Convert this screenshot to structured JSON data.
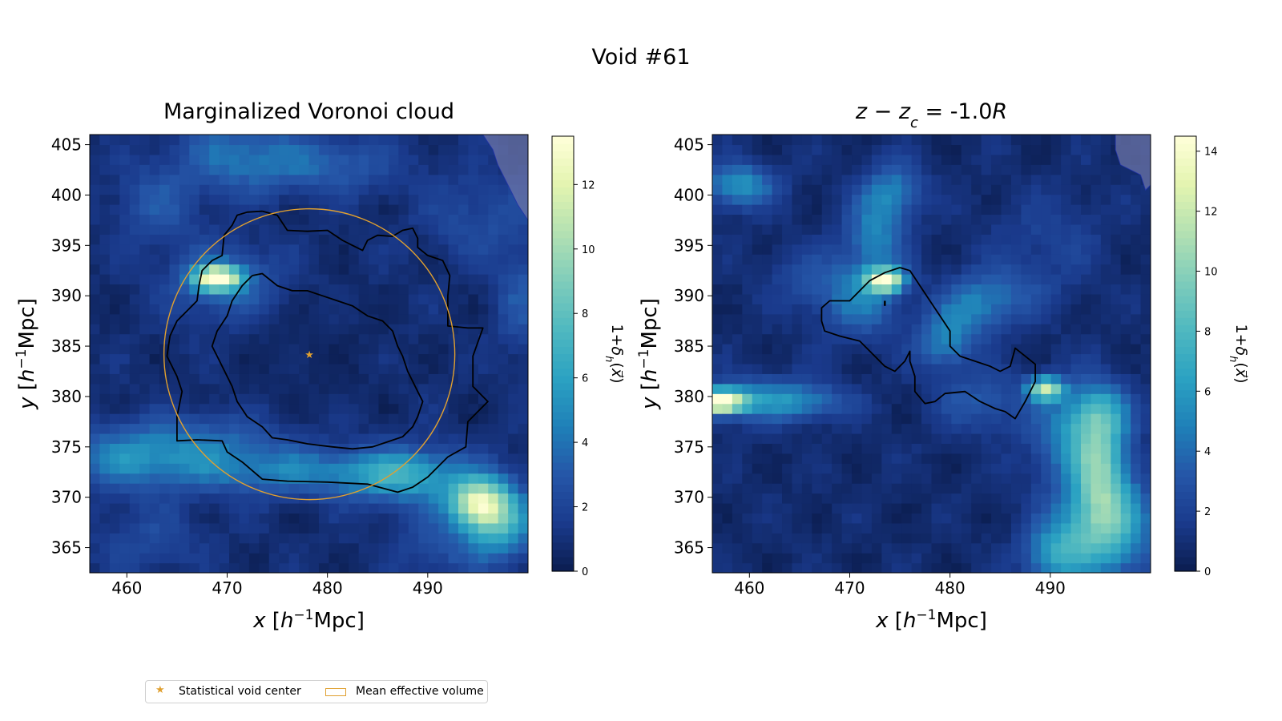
{
  "suptitle": "Void #61",
  "colors": {
    "colormap": [
      "#0b1d4f",
      "#1a3a8c",
      "#2556a8",
      "#1f80b8",
      "#2ba2c2",
      "#4fb8c0",
      "#7fcdbb",
      "#b3e0b2",
      "#e3f4b0",
      "#ffffd9"
    ],
    "contour_line": "#000000",
    "center_marker": "#e0a030",
    "effective_volume": "#e0a030",
    "mask_overlay": "#6b74a8"
  },
  "legend": {
    "center_label": "Statistical void center",
    "volume_label": "Mean effective volume"
  },
  "chart_data": [
    {
      "type": "heatmap",
      "title": "Marginalized Voronoi cloud",
      "xlabel": "x [h⁻¹Mpc]",
      "ylabel": "y [h⁻¹Mpc]",
      "colorbar_label": "1+δₕ(x⃗)",
      "xlim": [
        456.3,
        500.0
      ],
      "ylim": [
        362.5,
        406.0
      ],
      "xticks": [
        460,
        470,
        480,
        490
      ],
      "yticks": [
        365,
        370,
        375,
        380,
        385,
        390,
        395,
        400,
        405
      ],
      "clim": [
        0,
        13.5
      ],
      "cbar_ticks": [
        0,
        2,
        4,
        6,
        8,
        10,
        12
      ],
      "void_center": [
        478.2,
        384.2
      ],
      "effective_radius": 14.5,
      "density_features": [
        {
          "x": 469.0,
          "y": 391.8,
          "amp": 12.5,
          "sx": 1.6,
          "sy": 0.8
        },
        {
          "x": 470.0,
          "y": 391.3,
          "amp": 3.0,
          "sx": 4.0,
          "sy": 2.6
        },
        {
          "x": 495.0,
          "y": 369.5,
          "amp": 9.0,
          "sx": 2.0,
          "sy": 1.6
        },
        {
          "x": 497.0,
          "y": 367.5,
          "amp": 6.0,
          "sx": 2.5,
          "sy": 2.5
        },
        {
          "x": 488.0,
          "y": 372.0,
          "amp": 4.0,
          "sx": 4.0,
          "sy": 2.0
        },
        {
          "x": 478.0,
          "y": 372.5,
          "amp": 3.5,
          "sx": 10.0,
          "sy": 1.6
        },
        {
          "x": 460.0,
          "y": 374.0,
          "amp": 3.2,
          "sx": 5.0,
          "sy": 2.0
        },
        {
          "x": 468.0,
          "y": 375.5,
          "amp": 2.5,
          "sx": 6.0,
          "sy": 2.0
        },
        {
          "x": 471.0,
          "y": 404.0,
          "amp": 3.0,
          "sx": 4.0,
          "sy": 2.5
        },
        {
          "x": 480.0,
          "y": 403.0,
          "amp": 2.5,
          "sx": 5.0,
          "sy": 2.0
        },
        {
          "x": 463.0,
          "y": 399.0,
          "amp": 2.0,
          "sx": 3.0,
          "sy": 3.0
        },
        {
          "x": 495.0,
          "y": 398.0,
          "amp": 1.6,
          "sx": 4.0,
          "sy": 3.0
        },
        {
          "x": 499.5,
          "y": 390.0,
          "amp": 2.0,
          "sx": 2.0,
          "sy": 4.0
        },
        {
          "x": 462.0,
          "y": 366.0,
          "amp": 1.4,
          "sx": 4.0,
          "sy": 2.5
        },
        {
          "x": 491.0,
          "y": 365.0,
          "amp": 1.6,
          "sx": 3.0,
          "sy": 2.5
        }
      ],
      "contours": [
        [
          [
            473.5,
            398.4
          ],
          [
            475.0,
            398.0
          ],
          [
            476.0,
            396.5
          ],
          [
            478.0,
            396.4
          ],
          [
            480.0,
            396.5
          ],
          [
            481.5,
            395.5
          ],
          [
            482.5,
            395.0
          ],
          [
            483.5,
            394.5
          ],
          [
            484.0,
            395.5
          ],
          [
            485.0,
            396.0
          ],
          [
            486.5,
            395.9
          ],
          [
            487.5,
            396.5
          ],
          [
            488.5,
            396.7
          ],
          [
            489.0,
            395.7
          ],
          [
            489.0,
            394.8
          ],
          [
            490.0,
            394.0
          ],
          [
            491.5,
            393.5
          ],
          [
            492.2,
            392.0
          ],
          [
            492.0,
            390.0
          ],
          [
            492.0,
            387.0
          ],
          [
            494.0,
            386.8
          ],
          [
            495.5,
            386.8
          ],
          [
            494.5,
            384.0
          ],
          [
            494.5,
            381.0
          ],
          [
            496.0,
            379.5
          ],
          [
            494.0,
            377.5
          ],
          [
            493.8,
            375.0
          ],
          [
            492.0,
            374.0
          ],
          [
            490.0,
            372.0
          ],
          [
            488.5,
            371.0
          ],
          [
            487.0,
            370.5
          ],
          [
            484.0,
            371.3
          ],
          [
            480.0,
            371.5
          ],
          [
            476.0,
            371.6
          ],
          [
            473.5,
            371.8
          ],
          [
            471.5,
            373.5
          ],
          [
            470.0,
            374.5
          ],
          [
            469.5,
            375.6
          ],
          [
            467.0,
            375.7
          ],
          [
            465.0,
            375.6
          ],
          [
            465.0,
            378.0
          ],
          [
            465.5,
            380.5
          ],
          [
            465.0,
            382.0
          ],
          [
            464.0,
            384.0
          ],
          [
            464.3,
            386.0
          ],
          [
            465.0,
            387.5
          ],
          [
            466.0,
            388.5
          ],
          [
            467.0,
            389.5
          ],
          [
            467.2,
            391.0
          ],
          [
            467.5,
            392.5
          ],
          [
            468.5,
            393.5
          ],
          [
            469.5,
            394.0
          ],
          [
            469.7,
            396.0
          ],
          [
            470.5,
            397.0
          ],
          [
            471.0,
            398.0
          ],
          [
            472.0,
            398.3
          ],
          [
            473.5,
            398.4
          ]
        ],
        [
          [
            472.5,
            392.0
          ],
          [
            473.5,
            392.2
          ],
          [
            475.0,
            391.0
          ],
          [
            476.5,
            390.5
          ],
          [
            478.0,
            390.5
          ],
          [
            479.5,
            390.0
          ],
          [
            481.0,
            389.5
          ],
          [
            482.5,
            389.0
          ],
          [
            484.0,
            388.0
          ],
          [
            485.5,
            387.5
          ],
          [
            486.5,
            386.5
          ],
          [
            487.0,
            385.0
          ],
          [
            487.5,
            384.0
          ],
          [
            488.0,
            382.5
          ],
          [
            488.5,
            381.5
          ],
          [
            489.0,
            380.5
          ],
          [
            489.5,
            379.5
          ],
          [
            489.0,
            378.0
          ],
          [
            488.5,
            377.0
          ],
          [
            487.5,
            376.0
          ],
          [
            486.0,
            375.5
          ],
          [
            484.5,
            375.0
          ],
          [
            482.5,
            374.8
          ],
          [
            480.5,
            375.0
          ],
          [
            478.0,
            375.3
          ],
          [
            476.0,
            375.7
          ],
          [
            474.5,
            375.9
          ],
          [
            473.5,
            377.0
          ],
          [
            472.0,
            378.0
          ],
          [
            471.0,
            379.5
          ],
          [
            470.5,
            381.0
          ],
          [
            470.0,
            382.0
          ],
          [
            469.0,
            384.0
          ],
          [
            468.5,
            385.0
          ],
          [
            469.0,
            386.5
          ],
          [
            470.0,
            388.0
          ],
          [
            470.5,
            389.5
          ],
          [
            471.5,
            391.0
          ],
          [
            472.5,
            392.0
          ]
        ]
      ],
      "mask_polygon": [
        [
          495.5,
          406.0
        ],
        [
          500.0,
          406.0
        ],
        [
          500.0,
          397.5
        ],
        [
          499.0,
          399.0
        ],
        [
          498.0,
          401.0
        ],
        [
          497.0,
          403.0
        ],
        [
          496.5,
          404.5
        ],
        [
          495.5,
          406.0
        ]
      ]
    },
    {
      "type": "heatmap",
      "title": "z − z_c = -1.0R",
      "xlabel": "x [h⁻¹Mpc]",
      "ylabel": "y [h⁻¹Mpc]",
      "colorbar_label": "1+δₕ(x⃗)",
      "xlim": [
        456.3,
        500.0
      ],
      "ylim": [
        362.5,
        406.0
      ],
      "xticks": [
        460,
        470,
        480,
        490
      ],
      "yticks": [
        365,
        370,
        375,
        380,
        385,
        390,
        395,
        400,
        405
      ],
      "clim": [
        0,
        14.5
      ],
      "cbar_ticks": [
        0,
        2,
        4,
        6,
        8,
        10,
        12,
        14
      ],
      "density_features": [
        {
          "x": 457.0,
          "y": 379.5,
          "amp": 13.5,
          "sx": 1.8,
          "sy": 0.8
        },
        {
          "x": 461.0,
          "y": 379.8,
          "amp": 4.0,
          "sx": 4.0,
          "sy": 1.5
        },
        {
          "x": 466.0,
          "y": 379.5,
          "amp": 2.5,
          "sx": 3.0,
          "sy": 1.2
        },
        {
          "x": 473.5,
          "y": 391.6,
          "amp": 12.0,
          "sx": 1.3,
          "sy": 0.8
        },
        {
          "x": 471.0,
          "y": 389.5,
          "amp": 3.5,
          "sx": 3.0,
          "sy": 2.5
        },
        {
          "x": 472.5,
          "y": 396.0,
          "amp": 4.0,
          "sx": 2.0,
          "sy": 3.0
        },
        {
          "x": 474.5,
          "y": 400.5,
          "amp": 3.5,
          "sx": 2.0,
          "sy": 2.0
        },
        {
          "x": 459.0,
          "y": 401.0,
          "amp": 5.0,
          "sx": 2.5,
          "sy": 1.5
        },
        {
          "x": 479.5,
          "y": 385.5,
          "amp": 4.0,
          "sx": 2.0,
          "sy": 2.0
        },
        {
          "x": 482.5,
          "y": 389.0,
          "amp": 3.5,
          "sx": 2.5,
          "sy": 2.0
        },
        {
          "x": 489.5,
          "y": 380.8,
          "amp": 10.0,
          "sx": 1.2,
          "sy": 0.8
        },
        {
          "x": 492.5,
          "y": 376.0,
          "amp": 4.5,
          "sx": 3.0,
          "sy": 3.5
        },
        {
          "x": 495.0,
          "y": 378.5,
          "amp": 4.0,
          "sx": 2.0,
          "sy": 2.0
        },
        {
          "x": 495.0,
          "y": 372.0,
          "amp": 6.5,
          "sx": 1.8,
          "sy": 4.0
        },
        {
          "x": 497.0,
          "y": 367.0,
          "amp": 5.0,
          "sx": 2.5,
          "sy": 3.5
        },
        {
          "x": 492.5,
          "y": 366.0,
          "amp": 4.5,
          "sx": 2.5,
          "sy": 3.0
        },
        {
          "x": 490.0,
          "y": 364.0,
          "amp": 3.5,
          "sx": 2.0,
          "sy": 2.0
        },
        {
          "x": 483.0,
          "y": 379.5,
          "amp": 2.5,
          "sx": 3.0,
          "sy": 2.0
        },
        {
          "x": 486.5,
          "y": 390.5,
          "amp": 1.8,
          "sx": 3.0,
          "sy": 2.0
        },
        {
          "x": 466.0,
          "y": 392.0,
          "amp": 1.6,
          "sx": 3.0,
          "sy": 2.0
        },
        {
          "x": 490.0,
          "y": 396.0,
          "amp": 1.3,
          "sx": 4.0,
          "sy": 3.0
        }
      ],
      "contours": [
        [
          [
            475.0,
            392.8
          ],
          [
            476.0,
            392.5
          ],
          [
            477.0,
            391.0
          ],
          [
            478.0,
            389.5
          ],
          [
            479.0,
            388.0
          ],
          [
            480.0,
            386.5
          ],
          [
            480.0,
            385.0
          ],
          [
            481.0,
            384.0
          ],
          [
            482.5,
            383.5
          ],
          [
            484.0,
            383.0
          ],
          [
            485.0,
            382.5
          ],
          [
            486.0,
            383.0
          ],
          [
            486.5,
            384.8
          ],
          [
            487.5,
            384.0
          ],
          [
            488.5,
            383.2
          ],
          [
            488.5,
            381.5
          ],
          [
            487.5,
            379.5
          ],
          [
            486.5,
            377.8
          ],
          [
            485.5,
            378.5
          ],
          [
            484.5,
            378.8
          ],
          [
            483.0,
            379.5
          ],
          [
            481.5,
            380.5
          ],
          [
            479.5,
            380.3
          ],
          [
            478.5,
            379.5
          ],
          [
            477.5,
            379.3
          ],
          [
            476.5,
            380.5
          ],
          [
            476.5,
            382.0
          ],
          [
            476.0,
            383.5
          ],
          [
            476.0,
            384.5
          ],
          [
            475.5,
            383.5
          ],
          [
            474.5,
            382.5
          ],
          [
            473.5,
            383.0
          ],
          [
            472.5,
            384.0
          ],
          [
            471.0,
            385.5
          ],
          [
            469.0,
            386.0
          ],
          [
            467.5,
            386.5
          ],
          [
            467.2,
            387.5
          ],
          [
            467.2,
            388.8
          ],
          [
            468.0,
            389.5
          ],
          [
            470.0,
            389.5
          ],
          [
            471.0,
            390.5
          ],
          [
            472.0,
            391.5
          ],
          [
            473.5,
            392.3
          ],
          [
            475.0,
            392.8
          ]
        ],
        [
          [
            473.5,
            389.5
          ],
          [
            473.5,
            389.0
          ]
        ]
      ],
      "mask_polygon": [
        [
          496.5,
          406.0
        ],
        [
          500.0,
          406.0
        ],
        [
          500.0,
          401.0
        ],
        [
          499.5,
          400.5
        ],
        [
          499.0,
          402.0
        ],
        [
          498.0,
          402.5
        ],
        [
          497.0,
          403.0
        ],
        [
          496.5,
          404.5
        ],
        [
          496.5,
          406.0
        ]
      ]
    }
  ]
}
